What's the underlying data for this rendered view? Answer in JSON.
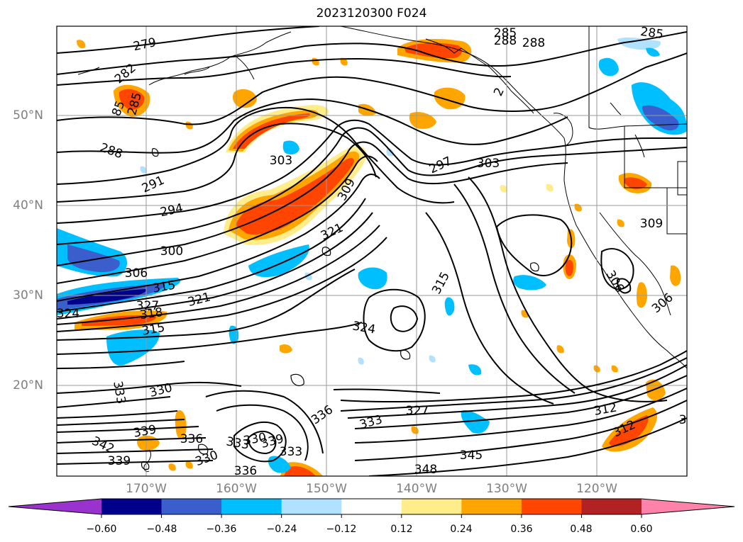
{
  "title": "2023120300 F024",
  "axes": {
    "lat_labels": [
      "50°N",
      "40°N",
      "30°N",
      "20°N"
    ],
    "lon_labels": [
      "170°W",
      "160°W",
      "150°W",
      "140°W",
      "130°W",
      "120°W"
    ]
  },
  "colorbar": {
    "ticks": [
      "−0.60",
      "−0.48",
      "−0.36",
      "−0.24",
      "−0.12",
      "0.12",
      "0.24",
      "0.36",
      "0.48",
      "0.60"
    ],
    "colors": [
      "#9a32cd",
      "#00008b",
      "#3a5fcd",
      "#00bfff",
      "#b0e2ff",
      "#ffffff",
      "#ffec8b",
      "#ffa500",
      "#ff4500",
      "#b22222",
      "#ff82ab"
    ]
  },
  "contour_labels": [
    "279",
    "282",
    "285",
    "285",
    "288",
    "288",
    "285",
    "291",
    "294",
    "297",
    "300",
    "303",
    "303",
    "306",
    "309",
    "309",
    "312",
    "315",
    "315",
    "315",
    "318",
    "321",
    "321",
    "324",
    "324",
    "327",
    "327",
    "330",
    "333",
    "333",
    "333",
    "336",
    "336",
    "339",
    "339",
    "339",
    "342",
    "345",
    "348",
    "306",
    "312",
    "330",
    "330",
    "333",
    "336",
    "2",
    "85",
    "288",
    "306",
    "3"
  ]
}
